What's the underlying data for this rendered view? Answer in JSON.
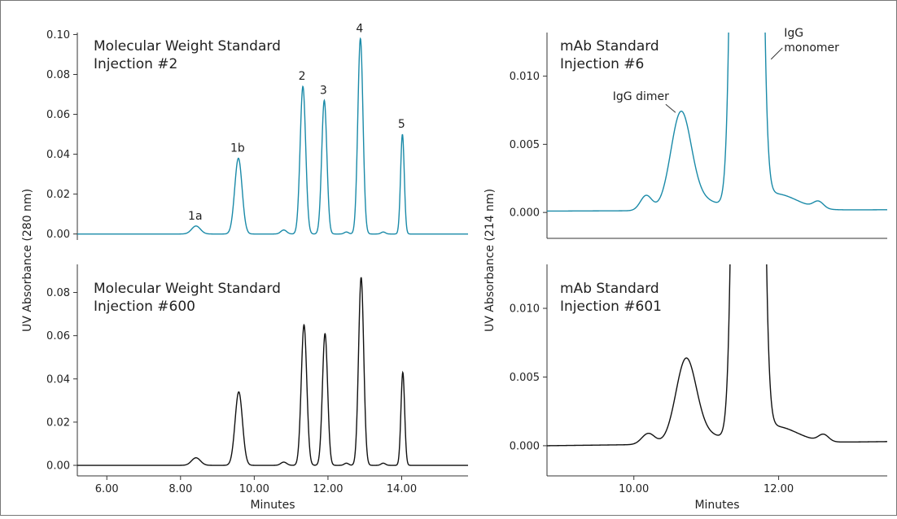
{
  "chart_data": [
    {
      "type": "line",
      "panel": "top-left",
      "title_lines": [
        "Molecular Weight Standard",
        "Injection #2"
      ],
      "color": "#1a8aa8",
      "xlim": [
        5.2,
        15.8
      ],
      "ylim": [
        -0.003,
        0.101
      ],
      "yticks": [
        0.0,
        0.02,
        0.04,
        0.06,
        0.08,
        0.1
      ],
      "ytick_labels": [
        "0.00",
        "0.02",
        "0.04",
        "0.06",
        "0.08",
        "0.10"
      ],
      "baseline": 0.0,
      "peaks": [
        {
          "center": 8.42,
          "height": 0.004,
          "width": 0.12,
          "label": "1a"
        },
        {
          "center": 9.57,
          "height": 0.038,
          "width": 0.1,
          "label": "1b"
        },
        {
          "center": 10.8,
          "height": 0.002,
          "width": 0.08,
          "label": ""
        },
        {
          "center": 11.32,
          "height": 0.074,
          "width": 0.075,
          "label": "2"
        },
        {
          "center": 11.9,
          "height": 0.067,
          "width": 0.07,
          "label": "3"
        },
        {
          "center": 12.5,
          "height": 0.001,
          "width": 0.06,
          "label": ""
        },
        {
          "center": 12.88,
          "height": 0.098,
          "width": 0.07,
          "label": "4"
        },
        {
          "center": 13.5,
          "height": 0.001,
          "width": 0.06,
          "label": ""
        },
        {
          "center": 14.02,
          "height": 0.05,
          "width": 0.05,
          "label": "5"
        }
      ]
    },
    {
      "type": "line",
      "panel": "bottom-left",
      "title_lines": [
        "Molecular Weight Standard",
        "Injection #600"
      ],
      "color": "#111111",
      "xlim": [
        5.2,
        15.8
      ],
      "ylim": [
        -0.003,
        0.093
      ],
      "yticks": [
        0.0,
        0.02,
        0.04,
        0.06,
        0.08
      ],
      "ytick_labels": [
        "0.00",
        "0.02",
        "0.04",
        "0.06",
        "0.08"
      ],
      "xticks": [
        6.0,
        8.0,
        10.0,
        12.0,
        14.0
      ],
      "xtick_labels": [
        "6.00",
        "8.00",
        "10.00",
        "12.00",
        "14.00"
      ],
      "xlabel": "Minutes",
      "baseline": 0.0,
      "peaks": [
        {
          "center": 8.42,
          "height": 0.0035,
          "width": 0.12
        },
        {
          "center": 9.58,
          "height": 0.034,
          "width": 0.1
        },
        {
          "center": 10.8,
          "height": 0.0015,
          "width": 0.08
        },
        {
          "center": 11.35,
          "height": 0.065,
          "width": 0.075
        },
        {
          "center": 11.92,
          "height": 0.061,
          "width": 0.07
        },
        {
          "center": 12.5,
          "height": 0.001,
          "width": 0.06
        },
        {
          "center": 12.9,
          "height": 0.087,
          "width": 0.07
        },
        {
          "center": 13.5,
          "height": 0.001,
          "width": 0.06
        },
        {
          "center": 14.03,
          "height": 0.043,
          "width": 0.05
        }
      ]
    },
    {
      "type": "line",
      "panel": "top-right",
      "title_lines": [
        "mAb Standard",
        "Injection #6"
      ],
      "color": "#1a8aa8",
      "xlim": [
        8.8,
        13.5
      ],
      "ylim": [
        -0.0019,
        0.0132
      ],
      "yticks": [
        0.0,
        0.005,
        0.01
      ],
      "ytick_labels": [
        "0.000",
        "0.005",
        "0.010"
      ],
      "baseline_start": 0.0001,
      "baseline_end": 0.0002,
      "peaks": [
        {
          "center": 10.17,
          "height": 0.0011,
          "width": 0.08
        },
        {
          "center": 10.65,
          "height": 0.0068,
          "width": 0.14
        },
        {
          "center": 10.9,
          "height": 0.0008,
          "width": 0.25
        },
        {
          "center": 11.56,
          "height": 0.3,
          "width": 0.1
        },
        {
          "center": 11.95,
          "height": 0.0012,
          "width": 0.3
        },
        {
          "center": 12.55,
          "height": 0.0005,
          "width": 0.07
        }
      ],
      "annotations": [
        {
          "text": "IgG dimer",
          "x": 10.62,
          "y": 0.0071
        },
        {
          "text": "IgG",
          "line2": "monomer",
          "x": 11.85,
          "y": 0.011
        }
      ]
    },
    {
      "type": "line",
      "panel": "bottom-right",
      "title_lines": [
        "mAb Standard",
        "Injection #601"
      ],
      "color": "#111111",
      "xlim": [
        8.8,
        13.5
      ],
      "ylim": [
        -0.0019,
        0.0132
      ],
      "yticks": [
        0.0,
        0.005,
        0.01
      ],
      "ytick_labels": [
        "0.000",
        "0.005",
        "0.010"
      ],
      "xticks": [
        10.0,
        12.0
      ],
      "xtick_labels": [
        "10.00",
        "12.00"
      ],
      "xlabel": "Minutes",
      "baseline_start": 0.0,
      "baseline_end": 0.0003,
      "peaks": [
        {
          "center": 10.2,
          "height": 0.0008,
          "width": 0.09
        },
        {
          "center": 10.72,
          "height": 0.0058,
          "width": 0.14
        },
        {
          "center": 10.95,
          "height": 0.0007,
          "width": 0.25
        },
        {
          "center": 11.58,
          "height": 0.3,
          "width": 0.1
        },
        {
          "center": 11.95,
          "height": 0.0012,
          "width": 0.3
        },
        {
          "center": 12.62,
          "height": 0.0005,
          "width": 0.07
        }
      ]
    }
  ],
  "left_ylabel": "UV Absorbance (280 nm)",
  "right_ylabel": "UV Absorbance (214 nm)"
}
